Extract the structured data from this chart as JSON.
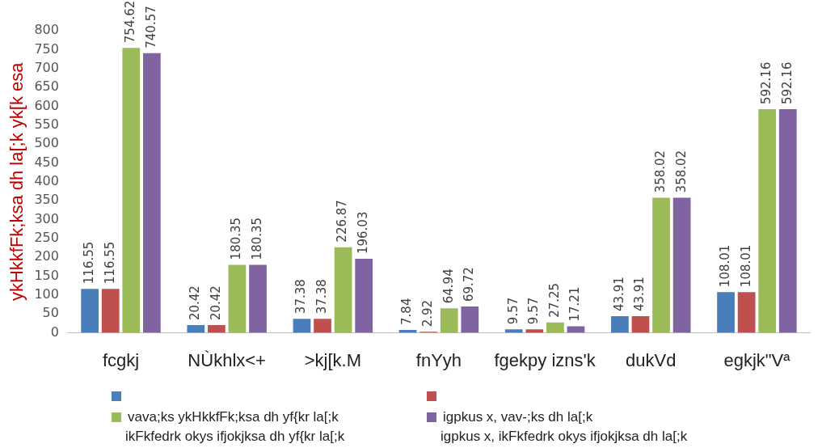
{
  "chart_data": {
    "type": "bar",
    "ylabel": "ykHkkfFk;ksa dh la[;k yk[k esa",
    "categories": [
      "fcgkj",
      "NÙkhlx<+",
      ">kj[k.M",
      "fnYyh",
      "fgekpy izns'k",
      "dukVd",
      "egkjk\"Vª"
    ],
    "series": [
      {
        "color": "#4a7ebb",
        "values": [
          116.55,
          20.42,
          37.38,
          7.84,
          9.57,
          43.91,
          108.01
        ]
      },
      {
        "color": "#c0504d",
        "values": [
          116.55,
          20.42,
          37.38,
          2.92,
          9.57,
          43.91,
          108.01
        ]
      },
      {
        "name": "vava;ks ykHkkfFk;ksa dh yf{kr la[;k",
        "color": "#9bbb59",
        "values": [
          754.62,
          180.35,
          226.87,
          64.94,
          27.25,
          358.02,
          592.16
        ]
      },
      {
        "name": "igpkus x, vav-;ks dh la[;k",
        "color": "#8064a2",
        "values": [
          740.57,
          180.35,
          196.03,
          69.72,
          17.21,
          358.02,
          592.16
        ]
      }
    ],
    "ylim": [
      0,
      800
    ],
    "yticks": [
      0,
      50,
      100,
      150,
      200,
      250,
      300,
      350,
      400,
      450,
      500,
      550,
      600,
      650,
      700,
      750,
      800
    ],
    "annotations": [
      "ikFkfedrk okys ifjokjksa dh yf{kr la[;k",
      "igpkus x, ikFkfedrk okys ifjokjksa dh la[;k"
    ],
    "grid": false,
    "legend": "bottom",
    "data_labels": true
  }
}
